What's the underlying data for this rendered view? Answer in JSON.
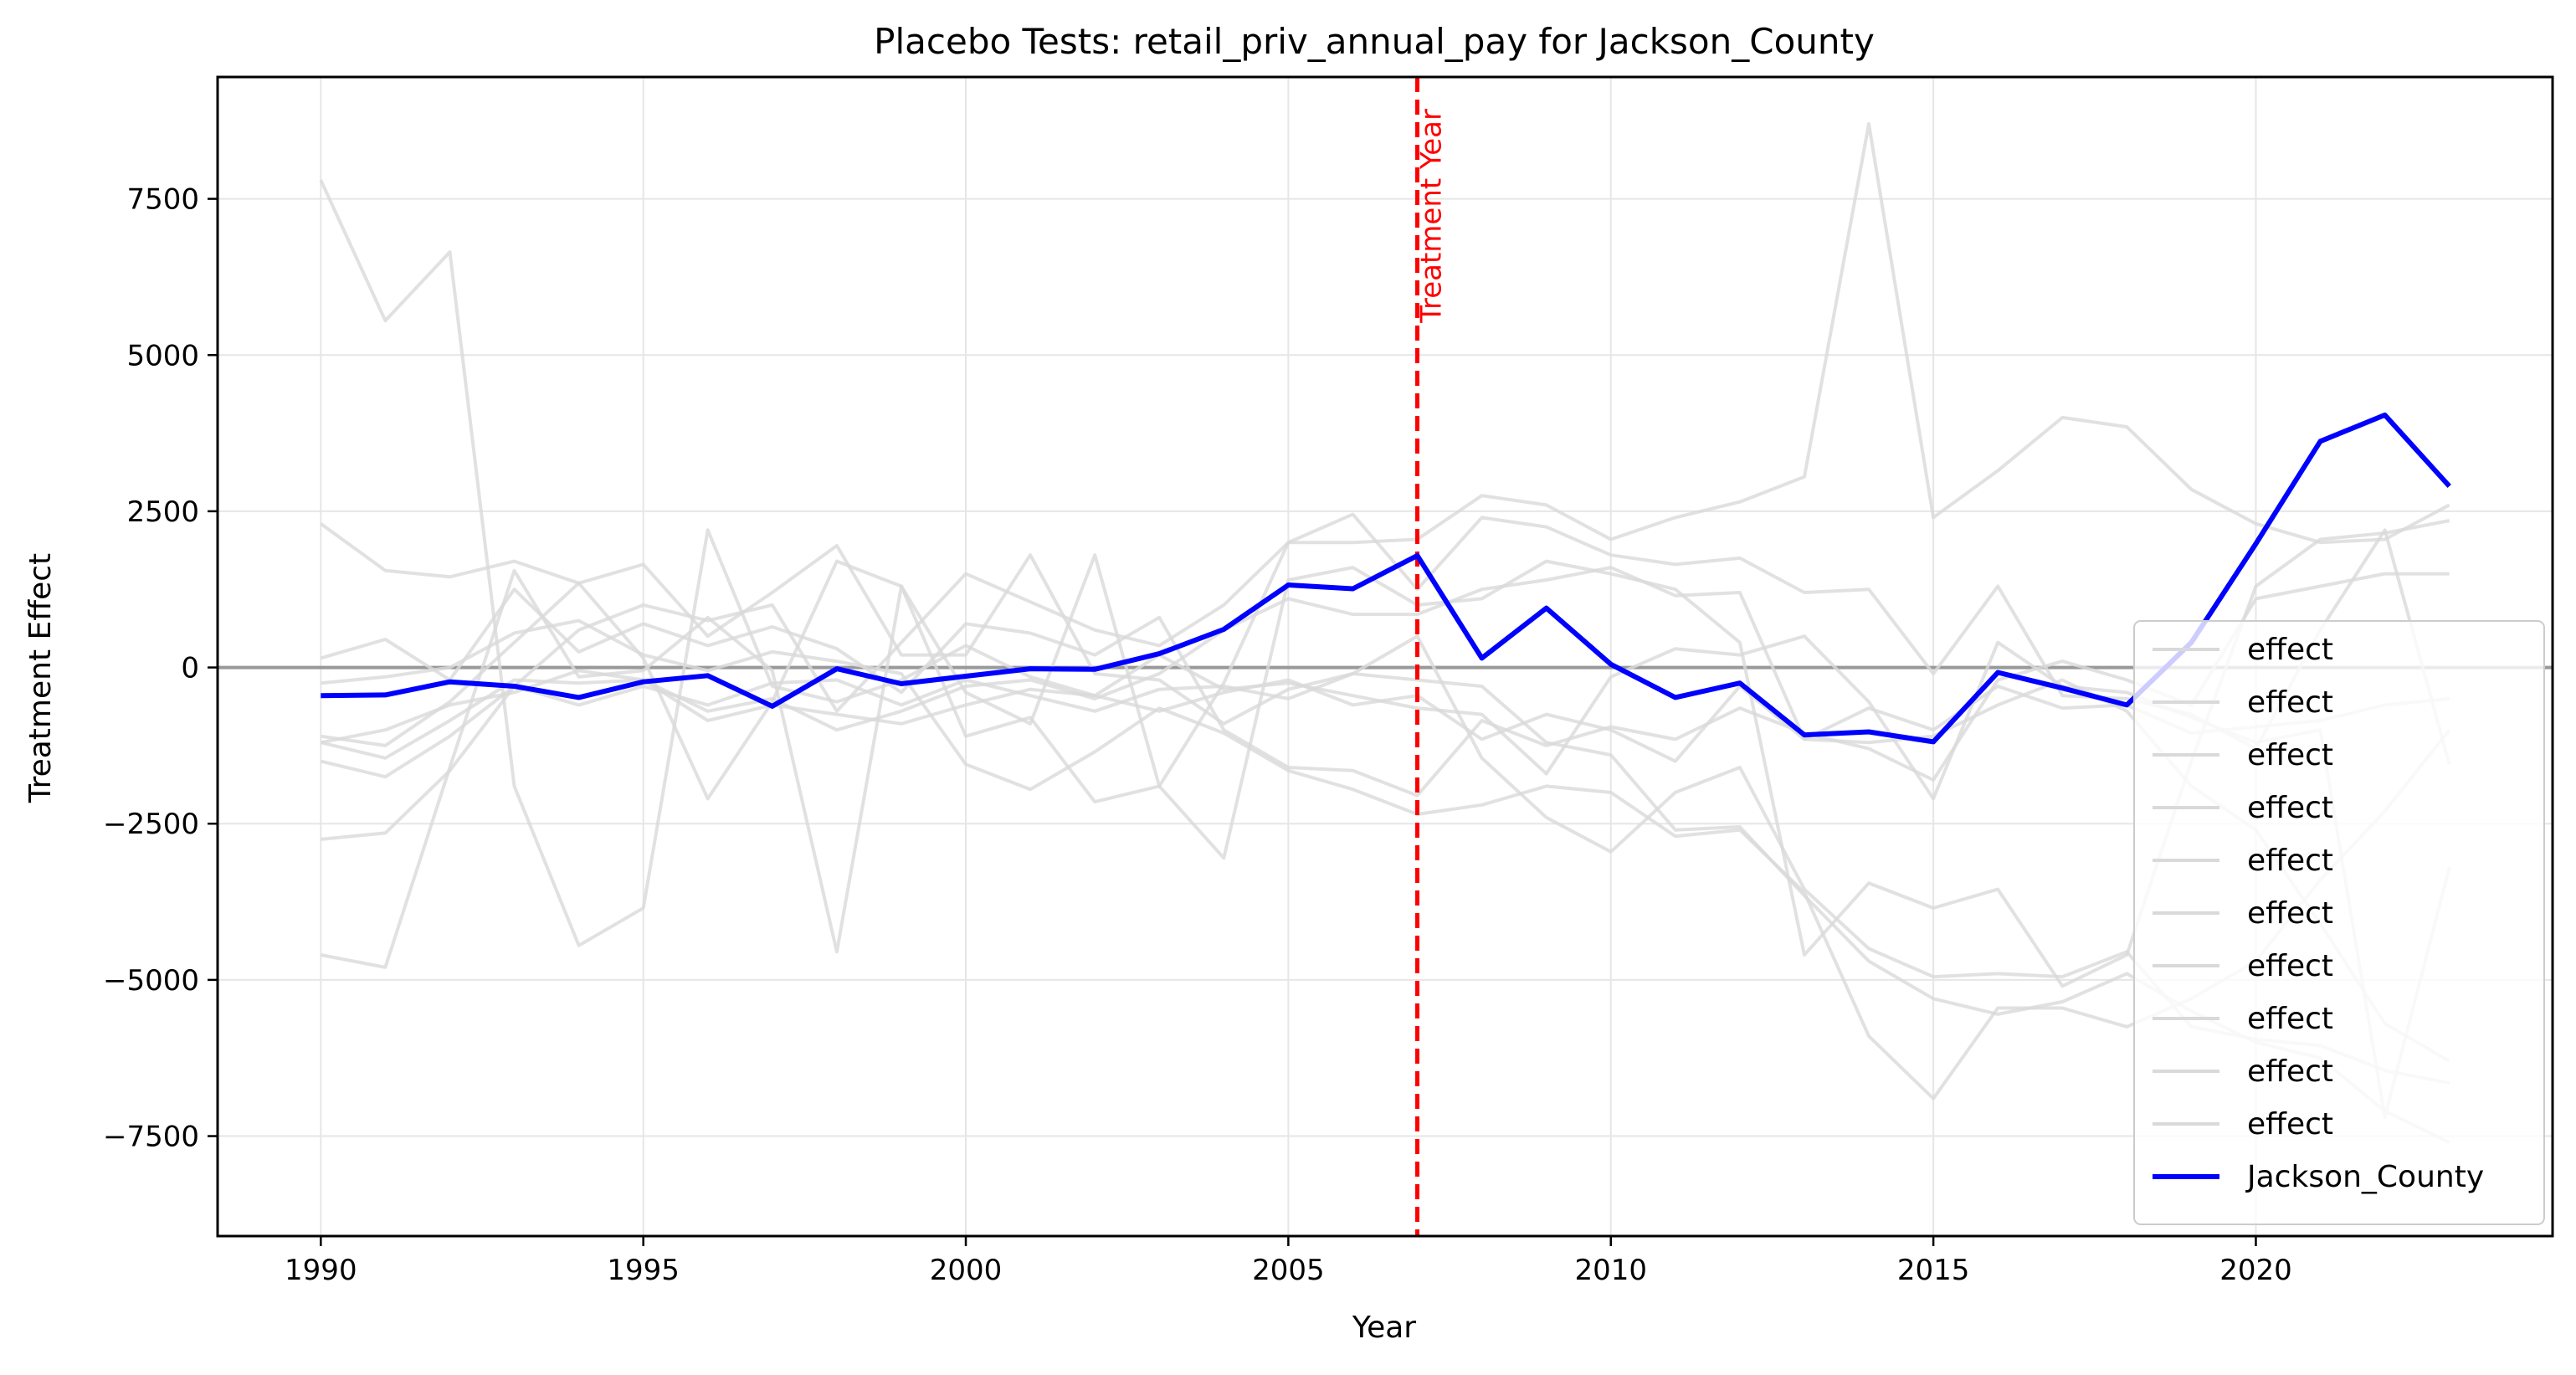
{
  "chart_data": {
    "type": "line",
    "title": "Placebo Tests: retail_priv_annual_pay for Jackson_County",
    "xlabel": "Year",
    "ylabel": "Treatment Effect",
    "xlim": [
      1988.4,
      2024.6
    ],
    "ylim": [
      -9100,
      9450
    ],
    "x_ticks": [
      1990,
      1995,
      2000,
      2005,
      2010,
      2015,
      2020
    ],
    "y_ticks": [
      -7500,
      -5000,
      -2500,
      0,
      2500,
      5000,
      7500
    ],
    "grid": true,
    "zero_line": 0,
    "treatment_year": 2007,
    "treatment_label": "Treatment Year",
    "legend_position": "lower-right",
    "colors": {
      "placebo": "#d9d9d9",
      "treated": "#0000ff",
      "treatment_line": "#ff0000",
      "zero_line": "#999999",
      "grid": "#e6e6e6"
    },
    "years": [
      1990,
      1991,
      1992,
      1993,
      1994,
      1995,
      1996,
      1997,
      1998,
      1999,
      2000,
      2001,
      2002,
      2003,
      2004,
      2005,
      2006,
      2007,
      2008,
      2009,
      2010,
      2011,
      2012,
      2013,
      2014,
      2015,
      2016,
      2017,
      2018,
      2019,
      2020,
      2021,
      2022,
      2023
    ],
    "placebo_series": [
      {
        "name": "effect",
        "values": [
          7800,
          5550,
          6650,
          -1900,
          -4450,
          -3850,
          2200,
          -300,
          -550,
          -200,
          350,
          -150,
          -450,
          200,
          -350,
          -250,
          -450,
          -650,
          -750,
          -1700,
          -150,
          300,
          200,
          500,
          -550,
          -2100,
          400,
          -300,
          -400,
          -800,
          -1200,
          -1000,
          -7200,
          -3200
        ]
      },
      {
        "name": "effect",
        "values": [
          2300,
          1550,
          1450,
          1700,
          1350,
          150,
          -2100,
          -550,
          1700,
          1300,
          -400,
          -900,
          1800,
          -1900,
          -250,
          2000,
          2450,
          1250,
          2400,
          2250,
          1800,
          1650,
          1750,
          1200,
          1250,
          -100,
          1300,
          -450,
          -500,
          -750,
          -1300,
          600,
          2200,
          -1550
        ]
      },
      {
        "name": "effect",
        "values": [
          -4600,
          -4800,
          -1600,
          1550,
          -150,
          -50,
          800,
          -50,
          -4550,
          1300,
          -1100,
          -800,
          -2150,
          -1900,
          -3050,
          1400,
          1600,
          1000,
          1100,
          1700,
          1500,
          1250,
          400,
          -4600,
          -3450,
          -3850,
          -3550,
          -5100,
          -4600,
          -1500,
          1300,
          2050,
          2150,
          2350
        ]
      },
      {
        "name": "effect",
        "values": [
          -2750,
          -2650,
          -1650,
          -300,
          600,
          1000,
          750,
          1000,
          -700,
          400,
          1500,
          1050,
          600,
          350,
          1000,
          2000,
          2000,
          2050,
          2750,
          2600,
          2050,
          2400,
          2650,
          3050,
          8700,
          2400,
          3150,
          4000,
          3850,
          2850,
          2300,
          2000,
          2050,
          2600
        ]
      },
      {
        "name": "effect",
        "values": [
          -1100,
          -1250,
          -550,
          400,
          1350,
          1650,
          500,
          1200,
          1950,
          200,
          200,
          1800,
          -100,
          -200,
          -900,
          -350,
          -100,
          500,
          -1450,
          -2400,
          -2950,
          -2000,
          -1600,
          -3550,
          -4500,
          -4950,
          -4900,
          -4950,
          -4550,
          -5750,
          -5950,
          -6050,
          -6450,
          -6650
        ]
      },
      {
        "name": "effect",
        "values": [
          -1200,
          -1000,
          -600,
          -400,
          -50,
          -200,
          -700,
          -500,
          -1000,
          -700,
          -300,
          -200,
          -500,
          -100,
          600,
          1100,
          850,
          850,
          1250,
          1400,
          1600,
          1150,
          1200,
          -1150,
          -1200,
          -1100,
          -600,
          -200,
          -700,
          -1900,
          -2600,
          -4100,
          -5700,
          -6300
        ]
      },
      {
        "name": "effect",
        "values": [
          -1500,
          -1750,
          -1100,
          -300,
          -600,
          -300,
          -600,
          -250,
          -200,
          -600,
          -200,
          -450,
          -700,
          -350,
          -300,
          -500,
          -100,
          -200,
          -300,
          -1200,
          -1400,
          -2600,
          -2550,
          -3650,
          -4700,
          -5300,
          -5550,
          -5350,
          -4900,
          -5500,
          -6000,
          -6250,
          -7100,
          -7600
        ]
      },
      {
        "name": "effect",
        "values": [
          150,
          450,
          -200,
          1250,
          250,
          700,
          350,
          650,
          300,
          -400,
          700,
          550,
          200,
          800,
          -1000,
          -1600,
          -1650,
          -2050,
          -850,
          -1250,
          -950,
          -1150,
          -650,
          -1050,
          -1300,
          -1800,
          -200,
          100,
          -200,
          -600,
          1100,
          1300,
          1500,
          1500
        ]
      },
      {
        "name": "effect",
        "values": [
          -250,
          -150,
          0,
          550,
          750,
          200,
          -50,
          250,
          100,
          -100,
          -1550,
          -1950,
          -1350,
          -650,
          -1050,
          -1650,
          -1950,
          -2350,
          -2200,
          -1900,
          -2000,
          -2700,
          -2600,
          -3600,
          -5900,
          -6900,
          -5450,
          -5450,
          -5750,
          -5300,
          -4700,
          -3400,
          -2300,
          -1000
        ]
      },
      {
        "name": "effect",
        "values": [
          -1200,
          -1450,
          -850,
          -200,
          -250,
          -200,
          -850,
          -600,
          -750,
          -900,
          -600,
          -350,
          -450,
          -700,
          -400,
          -200,
          -600,
          -450,
          -1150,
          -750,
          -1000,
          -1500,
          -300,
          -1150,
          -650,
          -1000,
          -300,
          -650,
          -600,
          -1050,
          -950,
          -850,
          -600,
          -500
        ]
      }
    ],
    "treated_series": {
      "name": "Jackson_County",
      "values": [
        -450,
        -440,
        -230,
        -300,
        -480,
        -230,
        -130,
        -620,
        -20,
        -260,
        -140,
        -20,
        -30,
        220,
        610,
        1320,
        1260,
        1790,
        150,
        950,
        50,
        -480,
        -250,
        -1080,
        -1030,
        -1190,
        -80,
        -330,
        -600,
        400,
        1980,
        3620,
        4040,
        2900
      ]
    }
  }
}
